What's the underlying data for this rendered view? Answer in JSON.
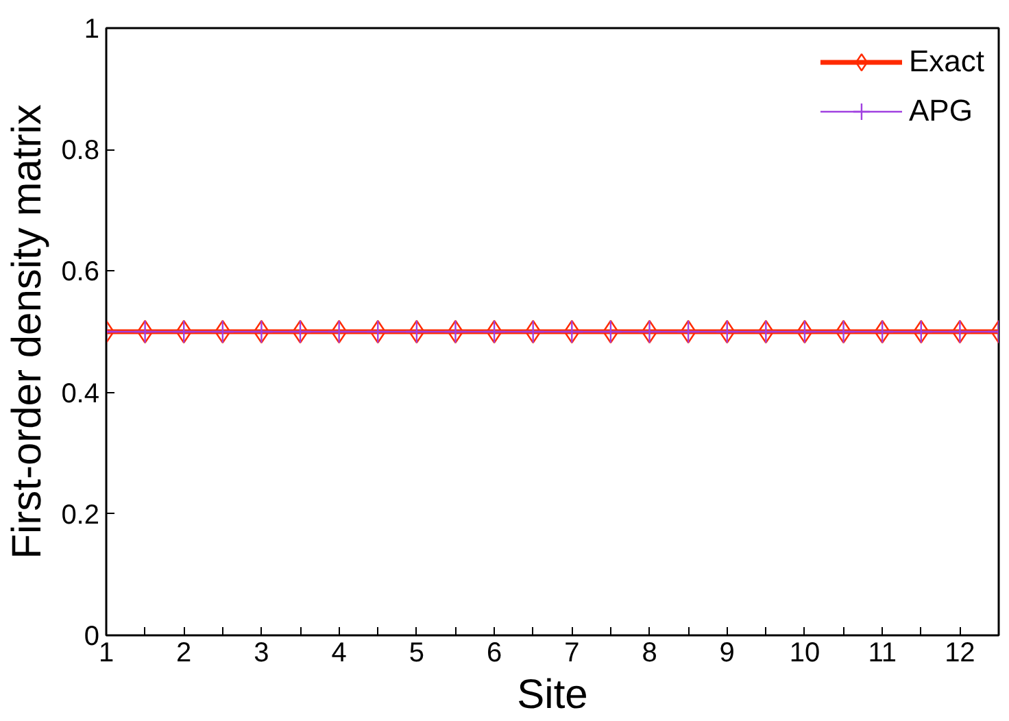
{
  "chart_data": {
    "type": "line",
    "xlabel": "Site",
    "ylabel": "First-order density matrix",
    "x": [
      1,
      1.5,
      2,
      2.5,
      3,
      3.5,
      4,
      4.5,
      5,
      5.5,
      6,
      6.5,
      7,
      7.5,
      8,
      8.5,
      9,
      9.5,
      10,
      10.5,
      11,
      11.5,
      12,
      12.5
    ],
    "series": [
      {
        "name": "Exact",
        "color": "#ff2a00",
        "marker": "diamond",
        "values": [
          0.5,
          0.5,
          0.5,
          0.5,
          0.5,
          0.5,
          0.5,
          0.5,
          0.5,
          0.5,
          0.5,
          0.5,
          0.5,
          0.5,
          0.5,
          0.5,
          0.5,
          0.5,
          0.5,
          0.5,
          0.5,
          0.5,
          0.5,
          0.5
        ]
      },
      {
        "name": "APG",
        "color": "#a040e0",
        "marker": "cross",
        "values": [
          0.5,
          0.5,
          0.5,
          0.5,
          0.5,
          0.5,
          0.5,
          0.5,
          0.5,
          0.5,
          0.5,
          0.5,
          0.5,
          0.5,
          0.5,
          0.5,
          0.5,
          0.5,
          0.5,
          0.5,
          0.5,
          0.5,
          0.5,
          0.5
        ]
      }
    ],
    "xlim": [
      1,
      12.5
    ],
    "ylim": [
      0,
      1
    ],
    "xticks": [
      1,
      {
        "value": 1.5,
        "label": null
      },
      2,
      {
        "value": 2.5,
        "label": null
      },
      3,
      {
        "value": 3.5,
        "label": null
      },
      4,
      {
        "value": 4.5,
        "label": null
      },
      5,
      {
        "value": 5.5,
        "label": null
      },
      6,
      {
        "value": 6.5,
        "label": null
      },
      7,
      {
        "value": 7.5,
        "label": null
      },
      8,
      {
        "value": 8.5,
        "label": null
      },
      9,
      {
        "value": 9.5,
        "label": null
      },
      10,
      {
        "value": 10.5,
        "label": null
      },
      11,
      {
        "value": 11.5,
        "label": null
      },
      12,
      {
        "value": 12.5,
        "label": null
      }
    ],
    "yticks": [
      0,
      0.2,
      0.4,
      0.6,
      0.8,
      1
    ],
    "grid": false,
    "legend": "top right",
    "line_style": "solid"
  }
}
